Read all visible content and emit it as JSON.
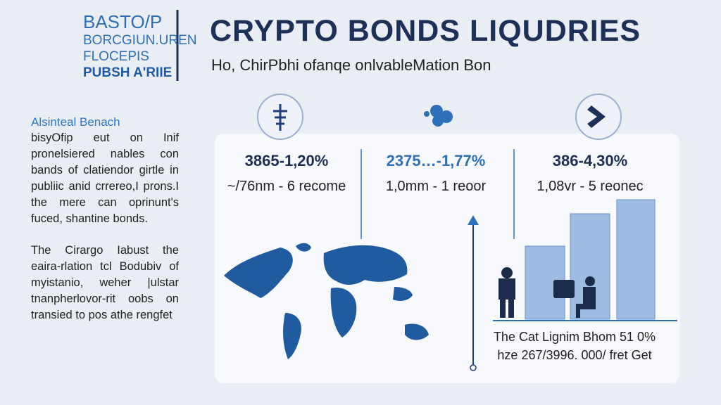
{
  "logo": {
    "lines": [
      "BASTO/P",
      "BORCGIUN.UREN",
      "FLOCEPIS",
      "PUBSH A'RIIE"
    ]
  },
  "header": {
    "title": "CRYPTO BONDS LIQUDRIES",
    "subtitle": "Ho, ChirPbhi ofanqe onlvableMation Bon"
  },
  "sidebar": {
    "heading": "Alsinteal Benach",
    "paragraphs": [
      "bisyOfip eut on Inif pronelsiered nables con bands of clatiendor girtle in publiic anid crrereo,I prons.I the mere can oprinunt's fuced, shantine bonds.",
      "The Cirargo Iabust the eaira-rlation tcl Bodubiv of myistanio, weher |ulstar tnanpherlovor-rit oobs on transied to pos athe rengfet"
    ]
  },
  "stats": [
    {
      "value": "3865-1,20%",
      "detail": "~/76nm - 6 recome"
    },
    {
      "value": "2375…-1,77%",
      "detail": "1,0mm - 1 reoor"
    },
    {
      "value": "386-4,30%",
      "detail": "1,08vr - 5 reonec"
    }
  ],
  "caption": {
    "lines": [
      "The Cat Lignim Bhom 51 0%",
      "hze 267/3996. 000/ fret Get"
    ]
  }
}
